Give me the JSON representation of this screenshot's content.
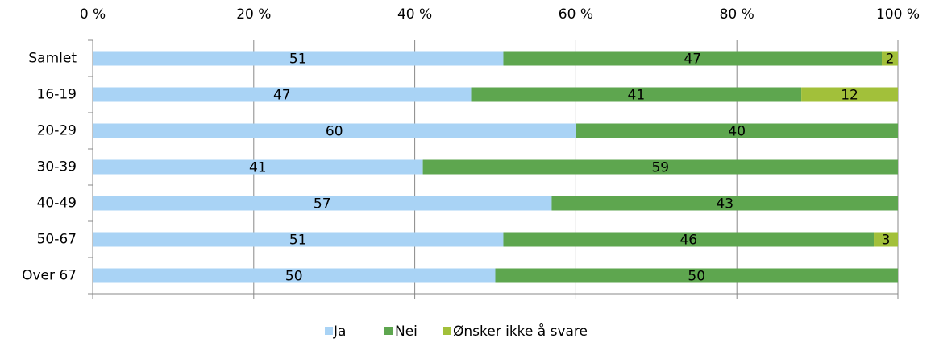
{
  "chart_data": {
    "type": "stacked-bar-horizontal",
    "categories": [
      "Samlet",
      "16-19",
      "20-29",
      "30-39",
      "40-49",
      "50-67",
      "Over 67"
    ],
    "series": [
      {
        "name": "Ja",
        "color": "#a9d3f5",
        "values": [
          51,
          47,
          60,
          41,
          57,
          51,
          50
        ]
      },
      {
        "name": "Nei",
        "color": "#5ea64f",
        "values": [
          47,
          41,
          40,
          59,
          43,
          46,
          50
        ]
      },
      {
        "name": "Ønsker ikke å svare",
        "color": "#a2c03a",
        "values": [
          2,
          12,
          null,
          null,
          null,
          3,
          null
        ]
      }
    ],
    "xlim": [
      0,
      100
    ],
    "xticks": [
      {
        "value": 0,
        "label": "0 %"
      },
      {
        "value": 20,
        "label": "20 %"
      },
      {
        "value": 40,
        "label": "40 %"
      },
      {
        "value": 60,
        "label": "60 %"
      },
      {
        "value": 80,
        "label": "80 %"
      },
      {
        "value": 100,
        "label": "100 %"
      }
    ],
    "grid": true,
    "legend": "bottom"
  }
}
